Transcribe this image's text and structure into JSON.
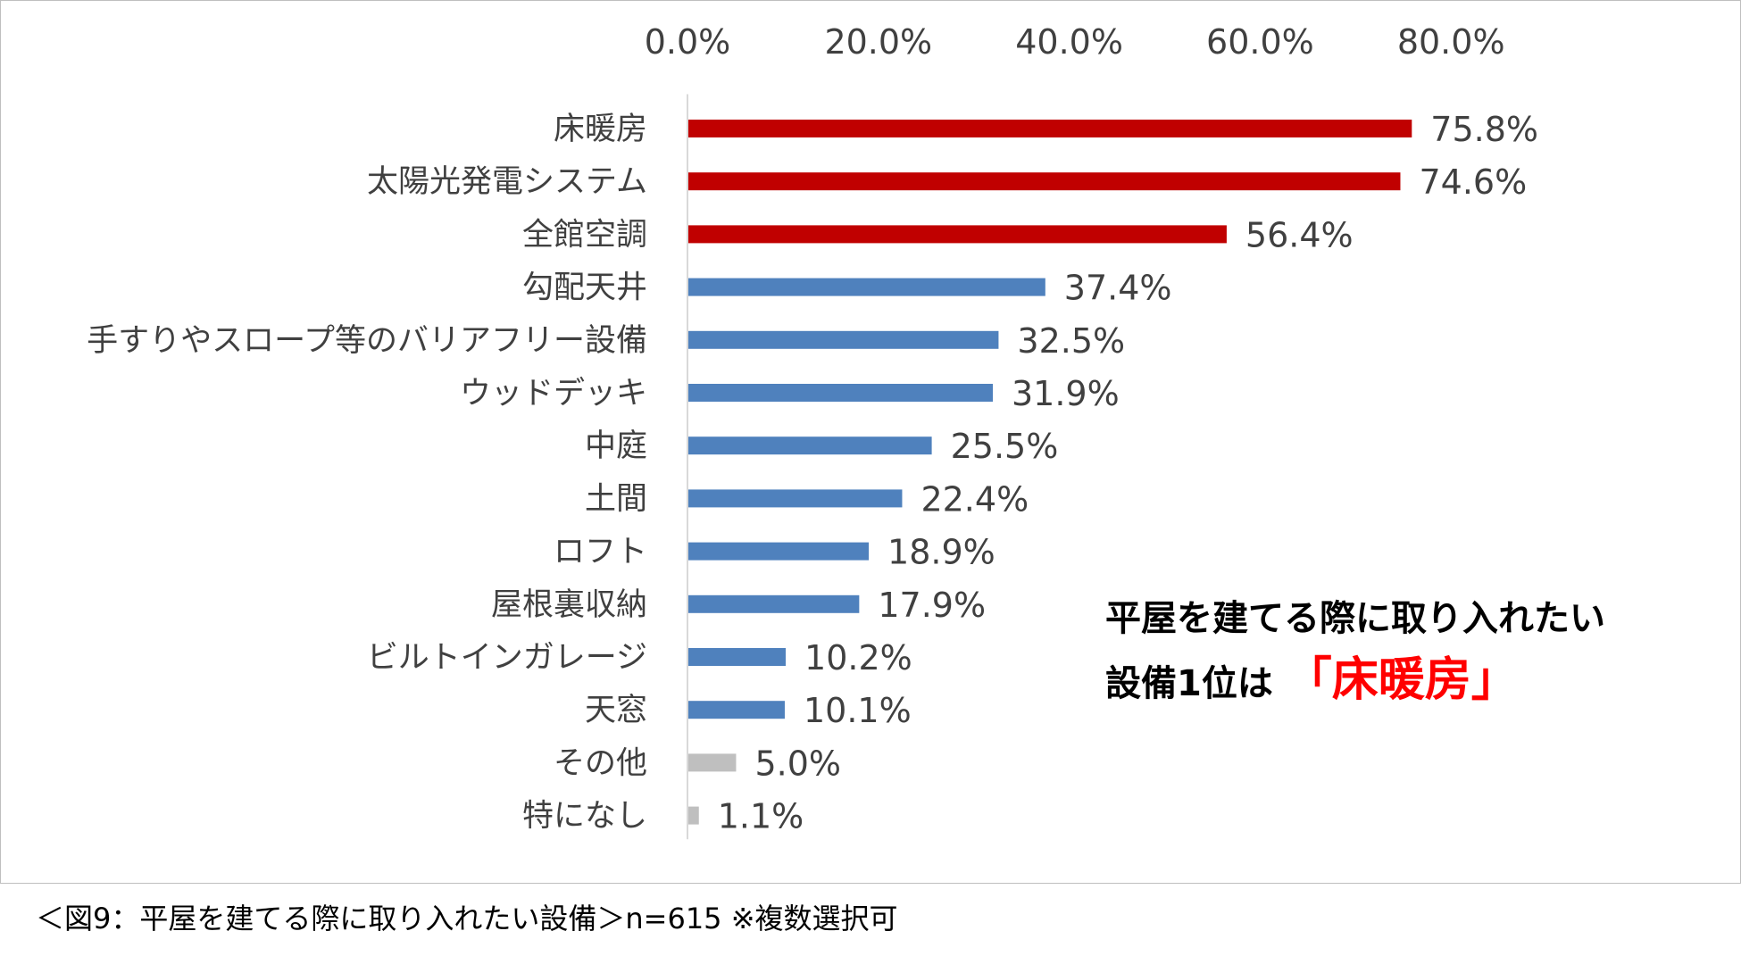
{
  "chart_data": {
    "type": "bar",
    "orientation": "horizontal",
    "categories": [
      "床暖房",
      "太陽光発電システム",
      "全館空調",
      "勾配天井",
      "手すりやスロープ等のバリアフリー設備",
      "ウッドデッキ",
      "中庭",
      "土間",
      "ロフト",
      "屋根裏収納",
      "ビルトインガレージ",
      "天窓",
      "その他",
      "特になし"
    ],
    "values": [
      75.8,
      74.6,
      56.4,
      37.4,
      32.5,
      31.9,
      25.5,
      22.4,
      18.9,
      17.9,
      10.2,
      10.1,
      5.0,
      1.1
    ],
    "value_labels": [
      "75.8%",
      "74.6%",
      "56.4%",
      "37.4%",
      "32.5%",
      "31.9%",
      "25.5%",
      "22.4%",
      "18.9%",
      "17.9%",
      "10.2%",
      "10.1%",
      "5.0%",
      "1.1%"
    ],
    "bar_colors": [
      "#c00000",
      "#c00000",
      "#c00000",
      "#4f81bd",
      "#4f81bd",
      "#4f81bd",
      "#4f81bd",
      "#4f81bd",
      "#4f81bd",
      "#4f81bd",
      "#4f81bd",
      "#4f81bd",
      "#bfbfbf",
      "#bfbfbf"
    ],
    "x_ticks": [
      0,
      20,
      40,
      60,
      80
    ],
    "x_tick_labels": [
      "0.0%",
      "20.0%",
      "40.0%",
      "60.0%",
      "80.0%"
    ],
    "xlim": [
      0,
      80
    ],
    "axis_position": "top",
    "grid": false,
    "legend": "none",
    "title": "",
    "xlabel": "",
    "ylabel": ""
  },
  "callout": {
    "line1": "平屋を建てる際に取り入れたい",
    "line2_prefix": "設備1位は",
    "line2_highlight": "「床暖房」"
  },
  "caption": "＜図9：平屋を建てる際に取り入れたい設備＞n=615 ※複数選択可"
}
